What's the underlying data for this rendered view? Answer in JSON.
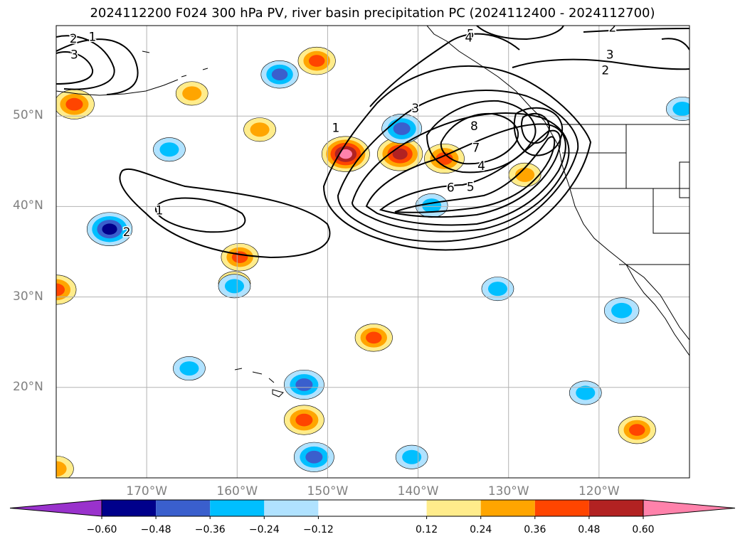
{
  "title": "2024112200 F024 300 hPa PV, river basin precipitation PC (2024112400 - 2024112700)",
  "map": {
    "projection": "plate carree",
    "lon_range": [
      -180,
      -110
    ],
    "lat_range": [
      10,
      60
    ],
    "grid": true,
    "lon_labels": [
      {
        "lon": -170,
        "text": "170°W"
      },
      {
        "lon": -160,
        "text": "160°W"
      },
      {
        "lon": -150,
        "text": "150°W"
      },
      {
        "lon": -140,
        "text": "140°W"
      },
      {
        "lon": -130,
        "text": "130°W"
      },
      {
        "lon": -120,
        "text": "120°W"
      }
    ],
    "lat_labels": [
      {
        "lat": 50,
        "text": "50°N"
      },
      {
        "lat": 40,
        "text": "40°N"
      },
      {
        "lat": 30,
        "text": "30°N"
      },
      {
        "lat": 20,
        "text": "20°N"
      }
    ],
    "pv_contour_labels": [
      {
        "text": "1",
        "lon": -176,
        "lat": 58.8
      },
      {
        "text": "2",
        "lon": -178.1,
        "lat": 58.6
      },
      {
        "text": "3",
        "lon": -178,
        "lat": 56.8
      },
      {
        "text": "1",
        "lon": -168.6,
        "lat": 39.6
      },
      {
        "text": "2",
        "lon": -172.2,
        "lat": 37.2
      },
      {
        "text": "1",
        "lon": -149.1,
        "lat": 48.7
      },
      {
        "text": "3",
        "lon": -140.3,
        "lat": 50.9
      },
      {
        "text": "6",
        "lon": -136.4,
        "lat": 42.1
      },
      {
        "text": "8",
        "lon": -133.8,
        "lat": 48.9
      },
      {
        "text": "7",
        "lon": -133.6,
        "lat": 46.5
      },
      {
        "text": "4",
        "lon": -133,
        "lat": 44.5
      },
      {
        "text": "5",
        "lon": -134.2,
        "lat": 42.2
      },
      {
        "text": "5",
        "lon": -134.2,
        "lat": 59.1
      },
      {
        "text": "4",
        "lon": -134.4,
        "lat": 58.7
      },
      {
        "text": "2",
        "lon": -118.5,
        "lat": 59.8
      },
      {
        "text": "3",
        "lon": -118.8,
        "lat": 56.8
      },
      {
        "text": "2",
        "lon": -119.3,
        "lat": 55.1
      }
    ],
    "precip_pc_blobs": [
      {
        "lon": -178,
        "lat": 51.3,
        "value": 0.45
      },
      {
        "lon": -165,
        "lat": 52.5,
        "value": 0.3
      },
      {
        "lon": -151.2,
        "lat": 56.1,
        "value": 0.4
      },
      {
        "lon": -157.5,
        "lat": 48.5,
        "value": 0.3
      },
      {
        "lon": -148,
        "lat": 45.8,
        "value": 0.6
      },
      {
        "lon": -142,
        "lat": 45.8,
        "value": 0.55
      },
      {
        "lon": -137.1,
        "lat": 45.3,
        "value": 0.45
      },
      {
        "lon": -128.2,
        "lat": 43.5,
        "value": 0.3
      },
      {
        "lon": -180,
        "lat": 30.8,
        "value": 0.45
      },
      {
        "lon": -159.7,
        "lat": 34.4,
        "value": 0.4
      },
      {
        "lon": -160.3,
        "lat": 31.5,
        "value": 0.3
      },
      {
        "lon": -144.9,
        "lat": 25.5,
        "value": 0.4
      },
      {
        "lon": -152.6,
        "lat": 16.4,
        "value": 0.45
      },
      {
        "lon": -115.8,
        "lat": 15.3,
        "value": 0.4
      },
      {
        "lon": -180,
        "lat": 11,
        "value": 0.35
      },
      {
        "lon": -155.3,
        "lat": 54.6,
        "value": -0.4
      },
      {
        "lon": -141.8,
        "lat": 48.6,
        "value": -0.45
      },
      {
        "lon": -167.5,
        "lat": 46.3,
        "value": -0.3
      },
      {
        "lon": -174.1,
        "lat": 37.5,
        "value": -0.55
      },
      {
        "lon": -138.5,
        "lat": 40.1,
        "value": -0.3
      },
      {
        "lon": -160.3,
        "lat": 31.2,
        "value": -0.3
      },
      {
        "lon": -152.6,
        "lat": 20.3,
        "value": -0.45
      },
      {
        "lon": -151.5,
        "lat": 12.3,
        "value": -0.45
      },
      {
        "lon": -140.7,
        "lat": 12.3,
        "value": -0.3
      },
      {
        "lon": -131.2,
        "lat": 30.9,
        "value": -0.3
      },
      {
        "lon": -121.5,
        "lat": 19.4,
        "value": -0.3
      },
      {
        "lon": -117.5,
        "lat": 28.5,
        "value": -0.35
      },
      {
        "lon": -165.3,
        "lat": 22.1,
        "value": -0.3
      },
      {
        "lon": -110.8,
        "lat": 50.8,
        "value": -0.3
      }
    ]
  },
  "colorbar": {
    "levels": [
      -0.72,
      -0.6,
      -0.48,
      -0.36,
      -0.24,
      -0.12,
      0.12,
      0.24,
      0.36,
      0.48,
      0.6,
      0.72
    ],
    "colors": [
      "#9932cc",
      "#00008b",
      "#3a5fcd",
      "#00bfff",
      "#b0e2ff",
      "#ffffff",
      "#ffec8b",
      "#ffa500",
      "#ff4500",
      "#b22222",
      "#ff82ab"
    ],
    "extend": "both",
    "tick_labels": [
      "−0.60",
      "−0.48",
      "−0.36",
      "−0.24",
      "−0.12",
      "0.12",
      "0.24",
      "0.36",
      "0.48",
      "0.60"
    ]
  }
}
